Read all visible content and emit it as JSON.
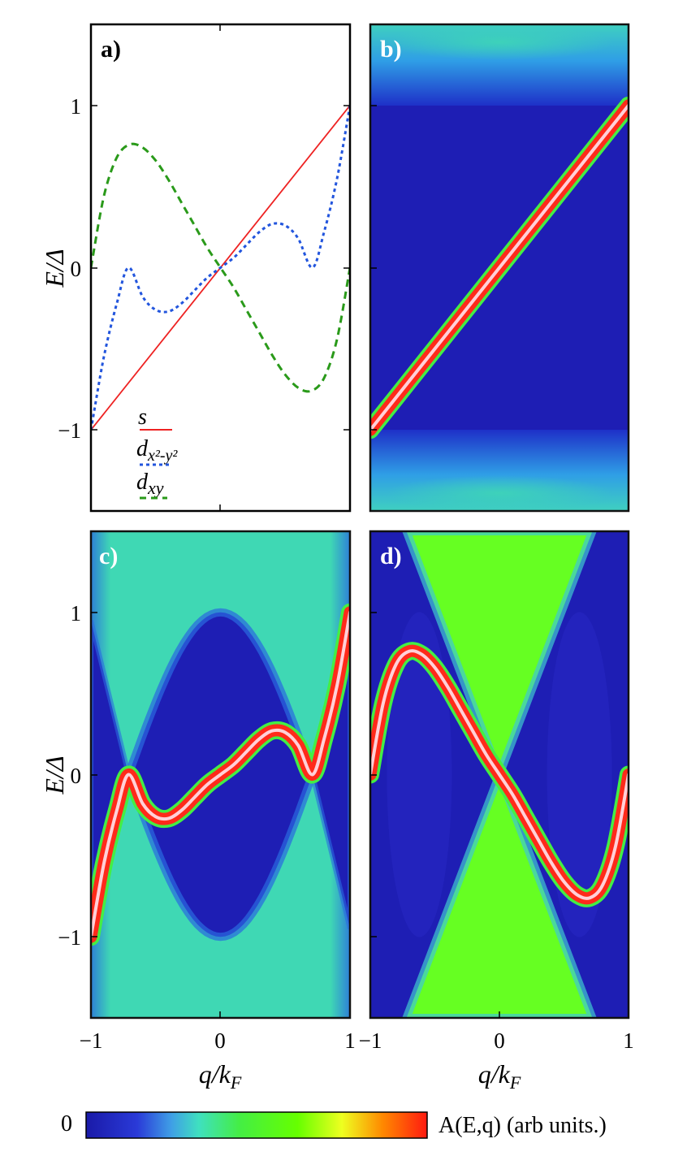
{
  "chart_data": [
    {
      "panel": "a)",
      "type": "line",
      "xlim": [
        -1,
        1
      ],
      "ylim": [
        -1.5,
        1.5
      ],
      "yticks": [
        "1",
        "0",
        "−1"
      ],
      "ylabel": "E/Δ",
      "series": [
        {
          "name": "s",
          "color": "#ee2222",
          "style": "solid",
          "x": [
            -1,
            1
          ],
          "y": [
            -1,
            1
          ]
        },
        {
          "name": "d_{x²-y²}",
          "color": "#2255dd",
          "style": "dotted",
          "x": [
            -1,
            -0.9,
            -0.8,
            -0.71,
            -0.6,
            -0.5,
            -0.4,
            -0.3,
            -0.2,
            -0.1,
            0,
            0.1,
            0.2,
            0.3,
            0.4,
            0.5,
            0.6,
            0.71,
            0.8,
            0.9,
            1
          ],
          "y": [
            -1,
            -0.55,
            -0.22,
            0,
            -0.18,
            -0.26,
            -0.27,
            -0.22,
            -0.14,
            -0.06,
            0,
            0.06,
            0.14,
            0.22,
            0.27,
            0.26,
            0.18,
            0,
            0.22,
            0.55,
            1
          ]
        },
        {
          "name": "d_{xy}",
          "color": "#2a9a1a",
          "style": "dashed",
          "x": [
            -1,
            -0.9,
            -0.8,
            -0.7,
            -0.6,
            -0.5,
            -0.4,
            -0.3,
            -0.2,
            -0.1,
            0,
            0.1,
            0.2,
            0.3,
            0.4,
            0.5,
            0.6,
            0.7,
            0.8,
            0.9,
            1
          ],
          "y": [
            0,
            0.44,
            0.68,
            0.76,
            0.74,
            0.66,
            0.54,
            0.4,
            0.26,
            0.12,
            0,
            -0.12,
            -0.26,
            -0.4,
            -0.54,
            -0.66,
            -0.74,
            -0.76,
            -0.68,
            -0.44,
            0
          ]
        }
      ]
    },
    {
      "panel": "b)",
      "type": "heatmap",
      "xlim": [
        -1,
        1
      ],
      "ylim": [
        -1.5,
        1.5
      ],
      "ridge": {
        "x": [
          -1,
          1
        ],
        "y": [
          -1,
          1
        ]
      }
    },
    {
      "panel": "c)",
      "type": "heatmap",
      "xlim": [
        -1,
        1
      ],
      "ylim": [
        -1.5,
        1.5
      ],
      "yticks": [
        "1",
        "0",
        "−1"
      ],
      "xticks": [
        "−1",
        "0",
        "1"
      ],
      "ylabel": "E/Δ",
      "xlabel": "q/k_F",
      "ridge": {
        "x": [
          -1,
          -0.9,
          -0.8,
          -0.71,
          -0.6,
          -0.5,
          -0.4,
          -0.3,
          -0.2,
          -0.1,
          0,
          0.1,
          0.2,
          0.3,
          0.4,
          0.5,
          0.6,
          0.71,
          0.8,
          0.9,
          1
        ],
        "y": [
          -1,
          -0.55,
          -0.22,
          0,
          -0.18,
          -0.26,
          -0.27,
          -0.22,
          -0.14,
          -0.06,
          0,
          0.06,
          0.14,
          0.22,
          0.27,
          0.26,
          0.18,
          0,
          0.22,
          0.55,
          1
        ]
      }
    },
    {
      "panel": "d)",
      "type": "heatmap",
      "xlim": [
        -1,
        1
      ],
      "ylim": [
        -1.5,
        1.5
      ],
      "xticks": [
        "−1",
        "0",
        "1"
      ],
      "xlabel": "q/k_F",
      "ridge": {
        "x": [
          -1,
          -0.9,
          -0.8,
          -0.7,
          -0.6,
          -0.5,
          -0.4,
          -0.3,
          -0.2,
          -0.1,
          0,
          0.1,
          0.2,
          0.3,
          0.4,
          0.5,
          0.6,
          0.7,
          0.8,
          0.9,
          1
        ],
        "y": [
          0,
          0.44,
          0.68,
          0.76,
          0.74,
          0.66,
          0.54,
          0.4,
          0.26,
          0.12,
          0,
          -0.12,
          -0.26,
          -0.4,
          -0.54,
          -0.66,
          -0.74,
          -0.76,
          -0.68,
          -0.44,
          0
        ]
      }
    }
  ],
  "panels": {
    "a": "a)",
    "b": "b)",
    "c": "c)",
    "d": "d)"
  },
  "legend": {
    "s": "s",
    "dx2y2_main": "d",
    "dx2y2_sub": "x²-y²",
    "dxy_main": "d",
    "dxy_sub": "xy"
  },
  "axes": {
    "ylabel_main": "E/Δ",
    "xlabel_main": "q/k",
    "xlabel_sub": "F",
    "ytick_1": "1",
    "ytick_0": "0",
    "ytick_m1": "−1",
    "xtick_m1": "−1",
    "xtick_0": "0",
    "xtick_1": "1"
  },
  "colorbar": {
    "min_label": "0",
    "label": "A(E,q) (arb units.)",
    "colors": [
      "#1a1aa8",
      "#2a3ad8",
      "#3f9fe6",
      "#3fe0c0",
      "#44ee44",
      "#66ff00",
      "#eeff20",
      "#ff8800",
      "#ff1a10"
    ]
  },
  "colors": {
    "background_dark": "#1e1eb4",
    "background_teal": "#3fd8b4",
    "background_green": "#66ff22",
    "ridge_red": "#ff2a1a",
    "ridge_core": "#ffd0d8"
  }
}
